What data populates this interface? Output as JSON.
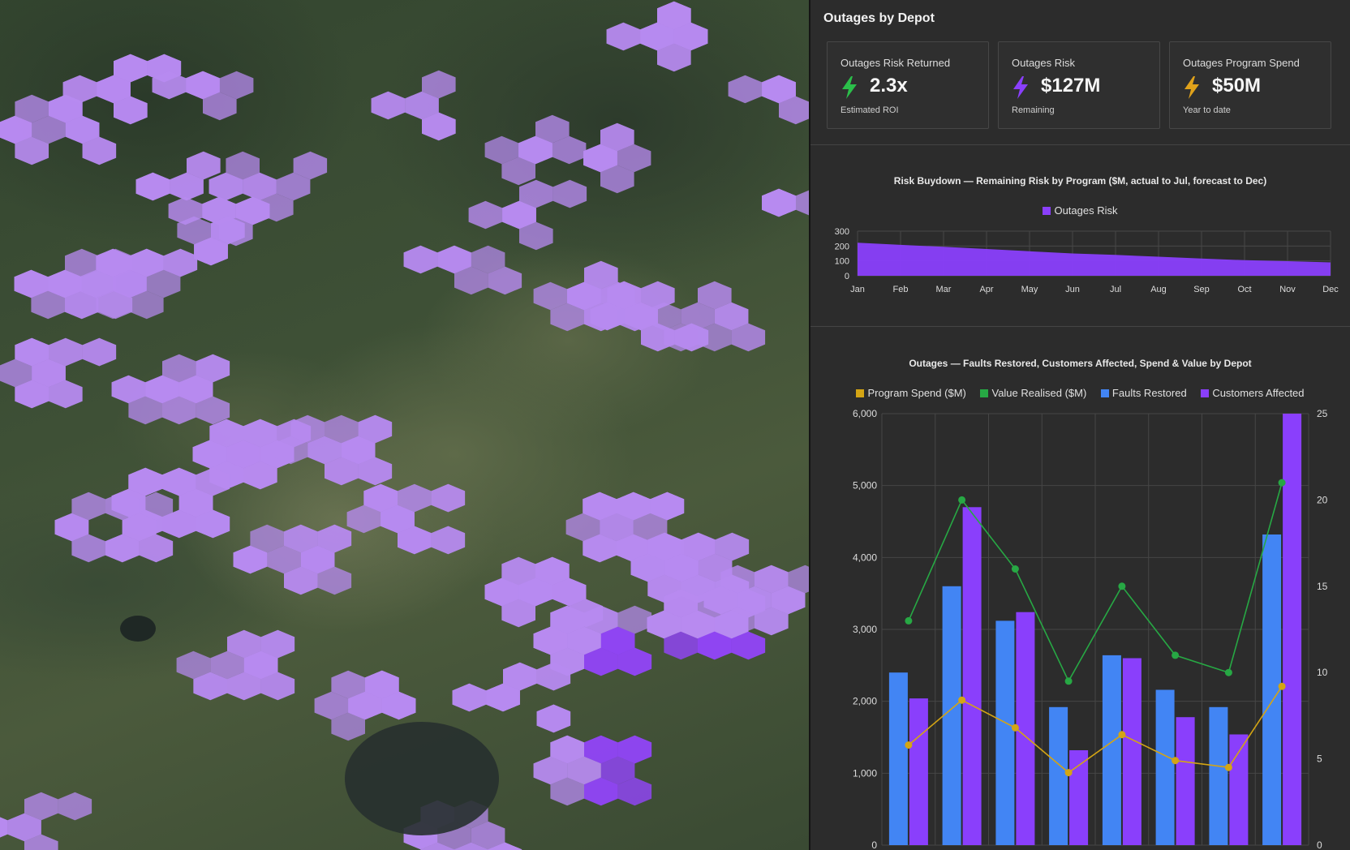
{
  "map": {
    "name": "aerial terrain map with hexagon overlay"
  },
  "panel": {
    "title": "Outages by Depot",
    "kpis": [
      {
        "label": "Outages Risk Returned",
        "value": "2.3x",
        "sub": "Estimated ROI",
        "icon": "lightning-icon",
        "color": "#2bbf4a"
      },
      {
        "label": "Outages Risk",
        "value": "$127M",
        "sub": "Remaining",
        "icon": "lightning-icon",
        "color": "#8a3ffc"
      },
      {
        "label": "Outages Program Spend",
        "value": "$50M",
        "sub": "Year to date",
        "icon": "lightning-icon",
        "color": "#e0a21b"
      }
    ]
  },
  "chart_data": [
    {
      "type": "area",
      "title": "Risk Buydown — Remaining Risk by Program ($M, actual to Jul, forecast to Dec)",
      "categories": [
        "Jan",
        "Feb",
        "Mar",
        "Apr",
        "May",
        "Jun",
        "Jul",
        "Aug",
        "Sep",
        "Oct",
        "Nov",
        "Dec"
      ],
      "series": [
        {
          "name": "Outages Risk",
          "color": "#8a3ffc",
          "values": [
            222,
            208,
            195,
            180,
            165,
            150,
            140,
            128,
            116,
            105,
            98,
            90
          ]
        }
      ],
      "yticks": [
        "300",
        "200",
        "100",
        "0"
      ],
      "ylim": [
        0,
        300
      ],
      "legend": "top-center",
      "grid": true
    },
    {
      "type": "bar",
      "title": "Outages — Faults Restored, Customers Affected, Spend & Value by Depot",
      "categories": [
        "",
        "",
        "",
        "",
        "",
        "",
        "",
        ""
      ],
      "series": [
        {
          "name": "Program Spend ($M)",
          "kind": "line",
          "axis": "right",
          "color": "#d4a514",
          "values": [
            5.8,
            8.4,
            6.8,
            4.2,
            6.4,
            4.9,
            4.5,
            9.2
          ]
        },
        {
          "name": "Value Realised ($M)",
          "kind": "line",
          "axis": "right",
          "color": "#27a844",
          "values": [
            13,
            20,
            16,
            9.5,
            15,
            11,
            10,
            21
          ]
        },
        {
          "name": "Faults Restored",
          "kind": "bar",
          "axis": "left",
          "color": "#4285f4",
          "values": [
            2400,
            3600,
            3120,
            1920,
            2640,
            2160,
            1920,
            4320
          ]
        },
        {
          "name": "Customers Affected",
          "kind": "bar",
          "axis": "left",
          "color": "#8a3ffc",
          "values": [
            2040,
            4700,
            3240,
            1320,
            2600,
            1780,
            1540,
            6000
          ]
        }
      ],
      "yticks_left": [
        "6,000",
        "5,000",
        "4,000",
        "3,000",
        "2,000",
        "1,000",
        "0"
      ],
      "yticks_right": [
        "25",
        "20",
        "15",
        "10",
        "5",
        "0"
      ],
      "ylim": [
        0,
        6000
      ],
      "y2lim": [
        0,
        25
      ],
      "legend": "top-center",
      "grid": true
    }
  ]
}
